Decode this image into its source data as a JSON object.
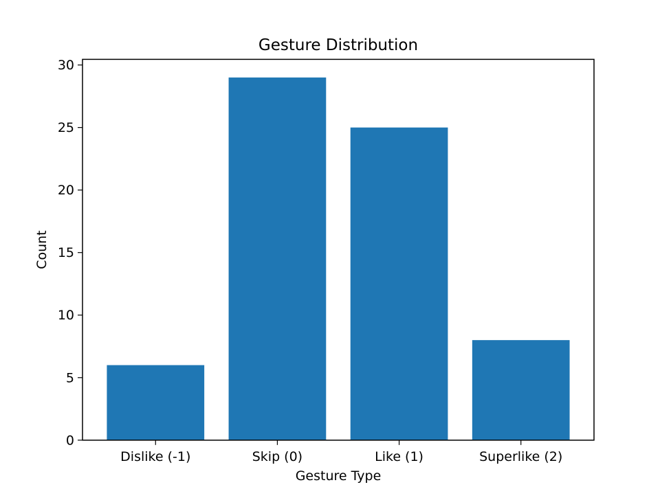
{
  "chart_data": {
    "type": "bar",
    "title": "Gesture Distribution",
    "xlabel": "Gesture Type",
    "ylabel": "Count",
    "categories": [
      "Dislike (-1)",
      "Skip (0)",
      "Like (1)",
      "Superlike (2)"
    ],
    "values": [
      6,
      29,
      25,
      8
    ],
    "ylim": [
      0,
      30.45
    ],
    "yticks": [
      0,
      5,
      10,
      15,
      20,
      25,
      30
    ],
    "grid": false,
    "legend": "none",
    "bar_color": "#1f77b4"
  }
}
